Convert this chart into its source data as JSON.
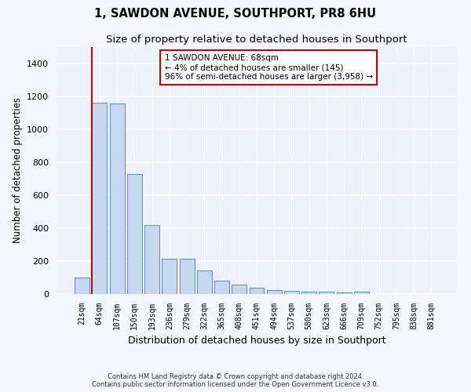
{
  "title": "1, SAWDON AVENUE, SOUTHPORT, PR8 6HU",
  "subtitle": "Size of property relative to detached houses in Southport",
  "xlabel": "Distribution of detached houses by size in Southport",
  "ylabel": "Number of detached properties",
  "categories": [
    "21sqm",
    "64sqm",
    "107sqm",
    "150sqm",
    "193sqm",
    "236sqm",
    "279sqm",
    "322sqm",
    "365sqm",
    "408sqm",
    "451sqm",
    "494sqm",
    "537sqm",
    "580sqm",
    "623sqm",
    "666sqm",
    "709sqm",
    "752sqm",
    "795sqm",
    "838sqm",
    "881sqm"
  ],
  "values": [
    100,
    1160,
    1155,
    730,
    420,
    215,
    215,
    145,
    80,
    55,
    40,
    25,
    20,
    15,
    15,
    10,
    15,
    0,
    0,
    0,
    0
  ],
  "bar_color": "#c5d8f0",
  "bar_edge_color": "#4a7abf",
  "marker_index": 1,
  "marker_color": "#cc0000",
  "ylim": [
    0,
    1500
  ],
  "yticks": [
    0,
    200,
    400,
    600,
    800,
    1000,
    1200,
    1400
  ],
  "annotation_text": "1 SAWDON AVENUE: 68sqm\n← 4% of detached houses are smaller (145)\n96% of semi-detached houses are larger (3,958) →",
  "annotation_box_color": "#ffffff",
  "annotation_box_edge": "#cc0000",
  "footer_line1": "Contains HM Land Registry data © Crown copyright and database right 2024.",
  "footer_line2": "Contains public sector information licensed under the Open Government Licence v3.0.",
  "bg_color": "#eef2fb",
  "grid_color": "#ffffff",
  "fig_bg_color": "#f5f7ff"
}
